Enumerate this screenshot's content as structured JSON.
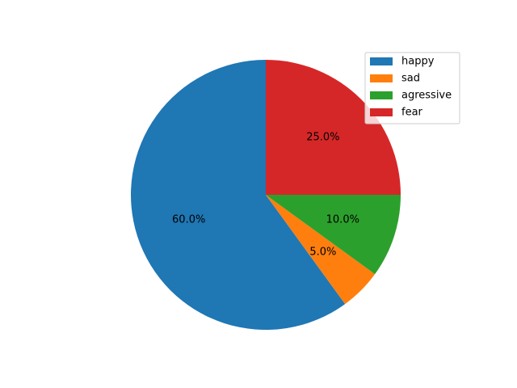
{
  "chart_data": {
    "type": "pie",
    "categories": [
      "happy",
      "sad",
      "agressive",
      "fear"
    ],
    "values": [
      60,
      5,
      10,
      25
    ],
    "value_labels": [
      "60.0%",
      "5.0%",
      "10.0%",
      "25.0%"
    ],
    "colors": [
      "#1f77b4",
      "#ff7f0e",
      "#2ca02c",
      "#d62728"
    ],
    "start_angle_deg": 90,
    "direction": "counterclockwise",
    "legend": {
      "placement": "top-right",
      "entries": [
        "happy",
        "sad",
        "agressive",
        "fear"
      ]
    },
    "title": ""
  }
}
